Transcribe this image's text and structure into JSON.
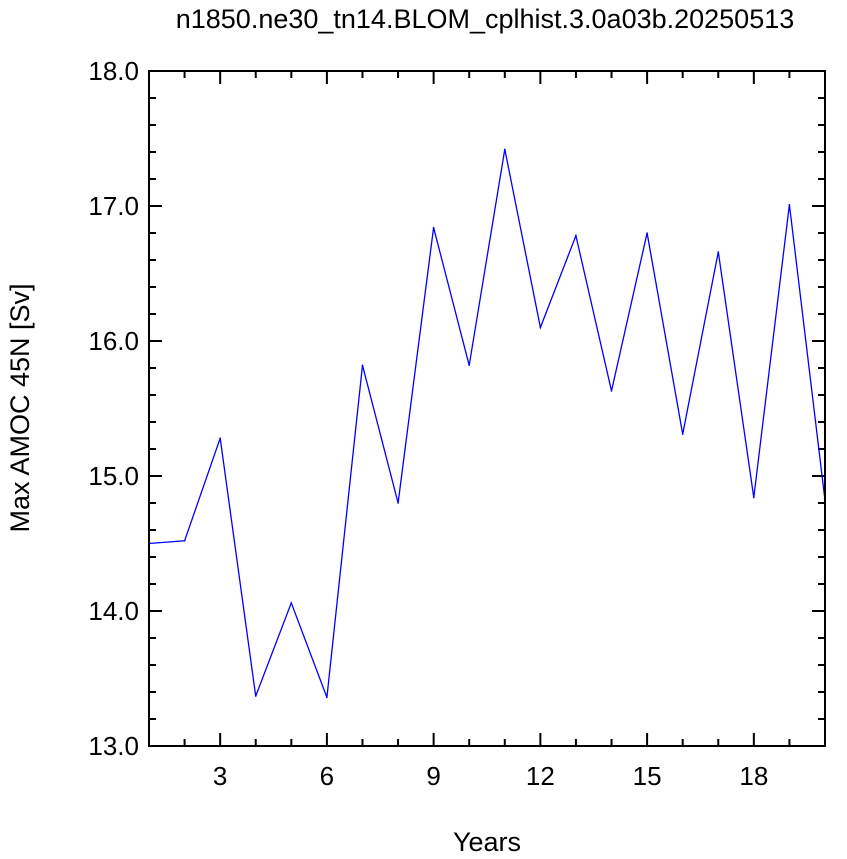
{
  "chart_data": {
    "type": "line",
    "title": "n1850.ne30_tn14.BLOM_cplhist.3.0a03b.20250513",
    "xlabel": "Years",
    "ylabel": "Max AMOC 45N [Sv]",
    "xlim": [
      1,
      20
    ],
    "ylim": [
      13.0,
      18.0
    ],
    "x_ticks": [
      3,
      6,
      9,
      12,
      15,
      18
    ],
    "x_tick_labels": [
      "3",
      "6",
      "9",
      "12",
      "15",
      "18"
    ],
    "x_minor_step": 1,
    "y_ticks": [
      13.0,
      14.0,
      15.0,
      16.0,
      17.0,
      18.0
    ],
    "y_tick_labels": [
      "13.0",
      "14.0",
      "15.0",
      "16.0",
      "17.0",
      "18.0"
    ],
    "y_minor_step": 0.2,
    "grid": false,
    "line_color": "#0000ff",
    "x": [
      1,
      2,
      3,
      4,
      5,
      6,
      7,
      8,
      9,
      10,
      11,
      12,
      13,
      14,
      15,
      16,
      17,
      18,
      19,
      20
    ],
    "values": [
      14.5,
      14.52,
      15.28,
      13.37,
      14.06,
      13.36,
      15.82,
      14.8,
      16.84,
      15.82,
      17.42,
      16.1,
      16.78,
      15.63,
      16.8,
      15.31,
      16.66,
      14.84,
      17.01,
      14.82
    ]
  }
}
